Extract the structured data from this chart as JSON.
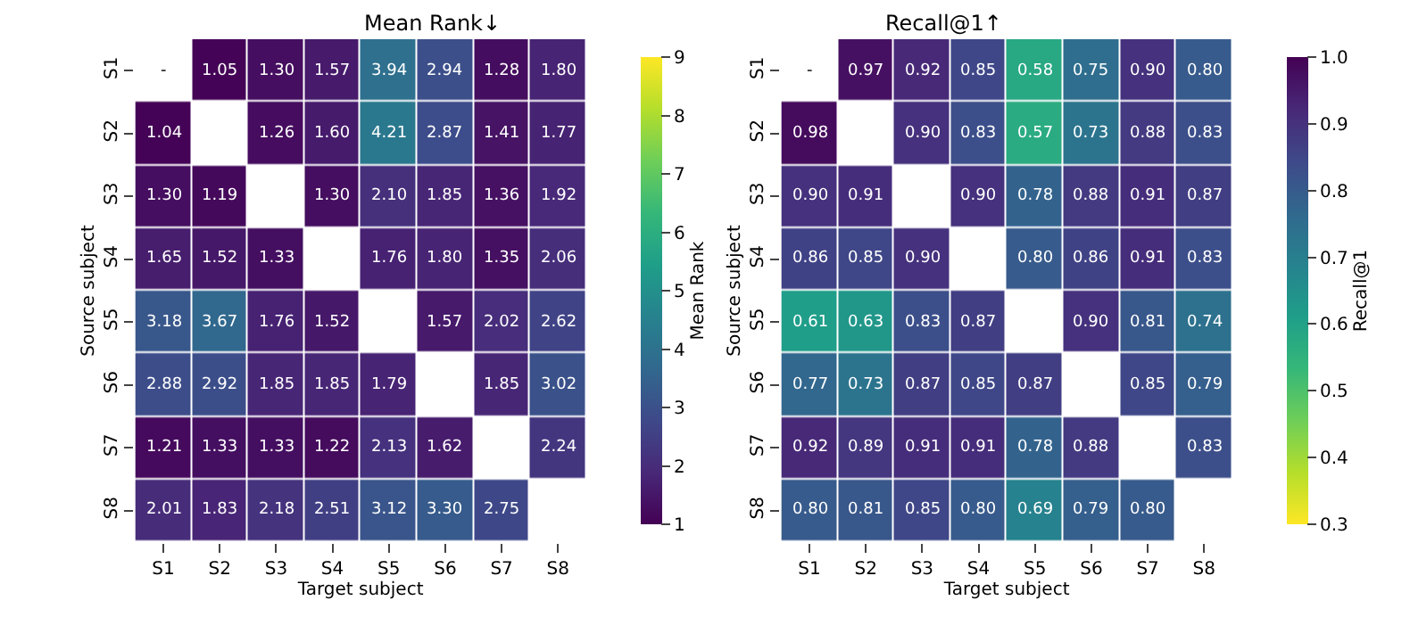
{
  "chart_data": [
    {
      "type": "heatmap",
      "title": "Mean Rank↓",
      "xlabel": "Target subject",
      "ylabel": "Source subject",
      "clabel": "Mean Rank",
      "categories": [
        "S1",
        "S2",
        "S3",
        "S4",
        "S5",
        "S6",
        "S7",
        "S8"
      ],
      "y_categories": [
        "S1",
        "S2",
        "S3",
        "S4",
        "S5",
        "S6",
        "S7",
        "S8"
      ],
      "cells": [
        [
          null,
          1.05,
          1.3,
          1.57,
          3.94,
          2.94,
          1.28,
          1.8
        ],
        [
          1.04,
          null,
          1.26,
          1.6,
          4.21,
          2.87,
          1.41,
          1.77
        ],
        [
          1.3,
          1.19,
          null,
          1.3,
          2.1,
          1.85,
          1.36,
          1.92
        ],
        [
          1.65,
          1.52,
          1.33,
          null,
          1.76,
          1.8,
          1.35,
          2.06
        ],
        [
          3.18,
          3.67,
          1.76,
          1.52,
          null,
          1.57,
          2.02,
          2.62
        ],
        [
          2.88,
          2.92,
          1.85,
          1.85,
          1.79,
          null,
          1.85,
          3.02
        ],
        [
          1.21,
          1.33,
          1.33,
          1.22,
          2.13,
          1.62,
          null,
          2.24
        ],
        [
          2.01,
          1.83,
          2.18,
          2.51,
          3.12,
          3.3,
          2.75,
          null
        ]
      ],
      "cell_labels": [
        [
          "-",
          "1.05",
          "1.30",
          "1.57",
          "3.94",
          "2.94",
          "1.28",
          "1.80"
        ],
        [
          "1.04",
          null,
          "1.26",
          "1.60",
          "4.21",
          "2.87",
          "1.41",
          "1.77"
        ],
        [
          "1.30",
          "1.19",
          null,
          "1.30",
          "2.10",
          "1.85",
          "1.36",
          "1.92"
        ],
        [
          "1.65",
          "1.52",
          "1.33",
          null,
          "1.76",
          "1.80",
          "1.35",
          "2.06"
        ],
        [
          "3.18",
          "3.67",
          "1.76",
          "1.52",
          null,
          "1.57",
          "2.02",
          "2.62"
        ],
        [
          "2.88",
          "2.92",
          "1.85",
          "1.85",
          "1.79",
          null,
          "1.85",
          "3.02"
        ],
        [
          "1.21",
          "1.33",
          "1.33",
          "1.22",
          "2.13",
          "1.62",
          null,
          "2.24"
        ],
        [
          "2.01",
          "1.83",
          "2.18",
          "2.51",
          "3.12",
          "3.30",
          "2.75",
          null
        ]
      ],
      "clim": [
        1,
        9
      ],
      "cticks": [
        1,
        2,
        3,
        4,
        5,
        6,
        7,
        8,
        9
      ]
    },
    {
      "type": "heatmap",
      "title": "Recall@1↑",
      "xlabel": "Target subject",
      "ylabel": "Source subject",
      "clabel": "Recall@1",
      "categories": [
        "S1",
        "S2",
        "S3",
        "S4",
        "S5",
        "S6",
        "S7",
        "S8"
      ],
      "y_categories": [
        "S1",
        "S2",
        "S3",
        "S4",
        "S5",
        "S6",
        "S7",
        "S8"
      ],
      "cells": [
        [
          null,
          0.97,
          0.92,
          0.85,
          0.58,
          0.75,
          0.9,
          0.8
        ],
        [
          0.98,
          null,
          0.9,
          0.83,
          0.57,
          0.73,
          0.88,
          0.83
        ],
        [
          0.9,
          0.91,
          null,
          0.9,
          0.78,
          0.88,
          0.91,
          0.87
        ],
        [
          0.86,
          0.85,
          0.9,
          null,
          0.8,
          0.86,
          0.91,
          0.83
        ],
        [
          0.61,
          0.63,
          0.83,
          0.87,
          null,
          0.9,
          0.81,
          0.74
        ],
        [
          0.77,
          0.73,
          0.87,
          0.85,
          0.87,
          null,
          0.85,
          0.79
        ],
        [
          0.92,
          0.89,
          0.91,
          0.91,
          0.78,
          0.88,
          null,
          0.83
        ],
        [
          0.8,
          0.81,
          0.85,
          0.8,
          0.69,
          0.79,
          0.8,
          null
        ]
      ],
      "cell_labels": [
        [
          "-",
          "0.97",
          "0.92",
          "0.85",
          "0.58",
          "0.75",
          "0.90",
          "0.80"
        ],
        [
          "0.98",
          null,
          "0.90",
          "0.83",
          "0.57",
          "0.73",
          "0.88",
          "0.83"
        ],
        [
          "0.90",
          "0.91",
          null,
          "0.90",
          "0.78",
          "0.88",
          "0.91",
          "0.87"
        ],
        [
          "0.86",
          "0.85",
          "0.90",
          null,
          "0.80",
          "0.86",
          "0.91",
          "0.83"
        ],
        [
          "0.61",
          "0.63",
          "0.83",
          "0.87",
          null,
          "0.90",
          "0.81",
          "0.74"
        ],
        [
          "0.77",
          "0.73",
          "0.87",
          "0.85",
          "0.87",
          null,
          "0.85",
          "0.79"
        ],
        [
          "0.92",
          "0.89",
          "0.91",
          "0.91",
          "0.78",
          "0.88",
          null,
          "0.83"
        ],
        [
          "0.80",
          "0.81",
          "0.85",
          "0.80",
          "0.69",
          "0.79",
          "0.80",
          null
        ]
      ],
      "clim": [
        1.0,
        0.3
      ],
      "cticks": [
        0.3,
        0.4,
        0.5,
        0.6,
        0.7,
        0.8,
        0.9,
        {
          "value": 1.0,
          "label": "1.0"
        }
      ]
    }
  ]
}
